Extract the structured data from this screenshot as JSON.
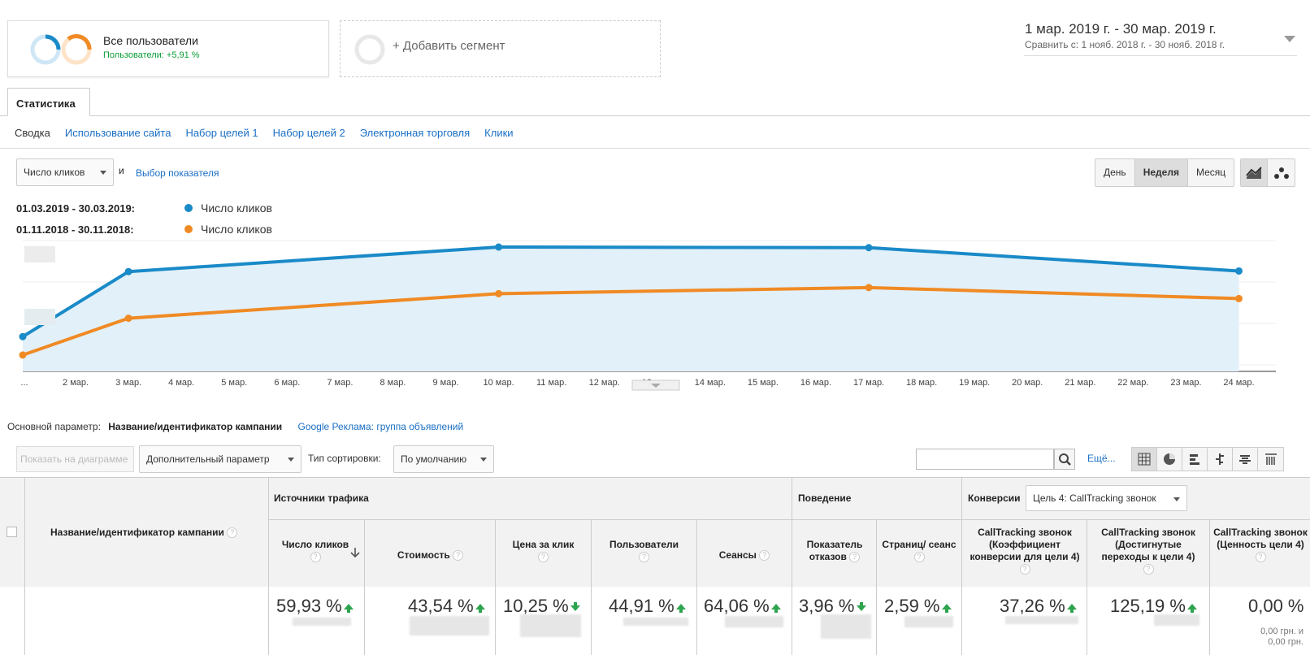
{
  "segments": {
    "active": {
      "title": "Все пользователи",
      "subtitle": "Пользователи: +5,91 %"
    },
    "add_label": "+ Добавить сегмент"
  },
  "date_range": {
    "main": "1 мар. 2019 г. - 30 мар. 2019 г.",
    "compare": "Сравнить с: 1 нояб. 2018 г. - 30 нояб. 2018 г."
  },
  "tabs": {
    "active": "Статистика"
  },
  "subnav": [
    "Сводка",
    "Использование сайта",
    "Набор целей 1",
    "Набор целей 2",
    "Электронная торговля",
    "Клики"
  ],
  "chart_controls": {
    "metric": "Число кликов",
    "and": "и",
    "select_metric": "Выбор показателя",
    "periods": [
      "День",
      "Неделя",
      "Месяц"
    ],
    "selected_period": "Неделя"
  },
  "legend": [
    {
      "range": "01.03.2019 - 30.03.2019:",
      "name": "Число кликов",
      "color": "#1a8ac8"
    },
    {
      "range": "01.11.2018 - 30.11.2018:",
      "name": "Число кликов",
      "color": "#f08a24"
    }
  ],
  "chart_data": {
    "type": "line",
    "x_labels": [
      "...",
      "2 мар.",
      "3 мар.",
      "4 мар.",
      "5 мар.",
      "6 мар.",
      "7 мар.",
      "8 мар.",
      "9 мар.",
      "10 мар.",
      "11 мар.",
      "12 мар.",
      "13 мар.",
      "14 мар.",
      "15 мар.",
      "16 мар.",
      "17 мар.",
      "18 мар.",
      "19 мар.",
      "20 мар.",
      "21 мар.",
      "22 мар.",
      "23 мар.",
      "24 мар."
    ],
    "x": [
      "1 мар.",
      "3 мар.",
      "10 мар.",
      "17 мар.",
      "24 мар."
    ],
    "series": [
      {
        "name": "Число кликов",
        "color": "#1a8ac8",
        "values": [
          27,
          80,
          100,
          99.5,
          80.5
        ]
      },
      {
        "name": "Число кликов",
        "color": "#f08a24",
        "values": [
          12,
          42,
          62,
          67,
          58
        ]
      }
    ],
    "ylim": [
      0,
      100
    ],
    "grid": true
  },
  "table_controls": {
    "primary_label": "Основной параметр:",
    "primary_value": "Название/идентификатор кампании",
    "alt_dimension": "Google Реклама: группа объявлений",
    "show_on_chart": "Показать на диаграмме",
    "secondary": "Дополнительный параметр",
    "sort_label": "Тип сортировки:",
    "sort_value": "По умолчанию",
    "more": "Ещё..."
  },
  "table": {
    "dimension_header": "Название/идентификатор кампании",
    "groups": {
      "traffic": "Источники трафика",
      "behavior": "Поведение",
      "conversions": "Конверсии",
      "goal_select": "Цель 4: CallTracking звонок"
    },
    "columns": [
      {
        "label": "Число кликов",
        "value": "59,93 %",
        "dir": "up"
      },
      {
        "label": "Стоимость",
        "value": "43,54 %",
        "dir": "up"
      },
      {
        "label": "Цена за клик",
        "value": "10,25 %",
        "dir": "down"
      },
      {
        "label": "Пользователи",
        "value": "44,91 %",
        "dir": "up"
      },
      {
        "label": "Сеансы",
        "value": "64,06 %",
        "dir": "up"
      },
      {
        "label": "Показатель отказов",
        "value": "3,96 %",
        "dir": "down"
      },
      {
        "label": "Страниц/ сеанс",
        "value": "2,59 %",
        "dir": "up"
      },
      {
        "label": "CallTracking звонок (Коэффициент конверсии для цели 4)",
        "value": "37,26 %",
        "dir": "up"
      },
      {
        "label": "CallTracking звонок (Достигнутые переходы к цели 4)",
        "value": "125,19 %",
        "dir": "up"
      },
      {
        "label": "CallTracking звонок (Ценность цели 4)",
        "value": "0,00 %",
        "dir": "none",
        "note1": "0,00 грн. и",
        "note2": "0,00 грн."
      }
    ]
  }
}
